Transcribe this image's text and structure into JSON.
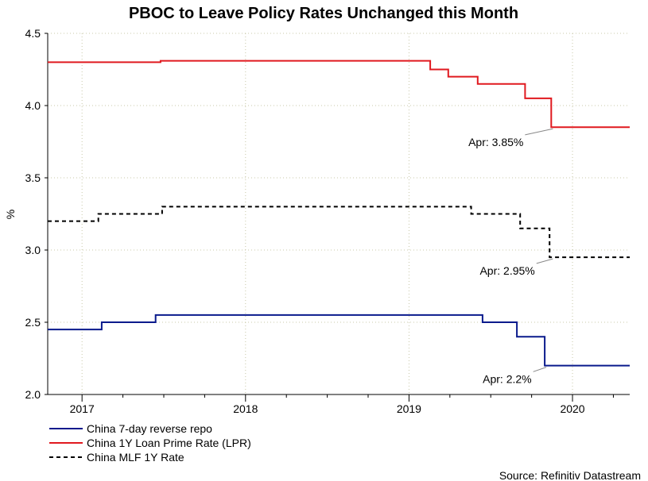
{
  "chart_data": {
    "type": "line",
    "title": "PBOC to Leave Policy Rates Unchanged this Month",
    "ylabel": "%",
    "xlabel": "",
    "ylim": [
      2.0,
      4.5
    ],
    "xlim": [
      2016.79,
      2020.35
    ],
    "yticks": [
      "2.0",
      "2.5",
      "3.0",
      "3.5",
      "4.0",
      "4.5"
    ],
    "xticks": [
      {
        "label": "2017",
        "pos": 2017.0
      },
      {
        "label": "2018",
        "pos": 2018.0
      },
      {
        "label": "2019",
        "pos": 2019.0
      },
      {
        "label": "2020",
        "pos": 2020.0
      }
    ],
    "grid": true,
    "series": [
      {
        "name": "China 7-day reverse repo",
        "color": "#0a1a8c",
        "dash": "solid",
        "x": [
          2016.79,
          2017.12,
          2017.12,
          2017.45,
          2017.45,
          2019.45,
          2019.45,
          2019.66,
          2019.66,
          2019.83,
          2019.83,
          2020.35
        ],
        "y": [
          2.45,
          2.45,
          2.5,
          2.5,
          2.55,
          2.55,
          2.5,
          2.5,
          2.4,
          2.4,
          2.2,
          2.2
        ]
      },
      {
        "name": "China 1Y Loan Prime Rate (LPR)",
        "color": "#e0191f",
        "dash": "solid",
        "x": [
          2016.79,
          2017.48,
          2017.48,
          2019.13,
          2019.13,
          2019.24,
          2019.24,
          2019.42,
          2019.42,
          2019.71,
          2019.71,
          2019.87,
          2019.87,
          2020.35
        ],
        "y": [
          4.3,
          4.3,
          4.31,
          4.31,
          4.25,
          4.25,
          4.2,
          4.2,
          4.15,
          4.15,
          4.05,
          4.05,
          3.85,
          3.85
        ]
      },
      {
        "name": "China MLF 1Y Rate",
        "color": "#000000",
        "dash": "dashed",
        "x": [
          2016.79,
          2017.1,
          2017.1,
          2017.49,
          2017.49,
          2019.38,
          2019.38,
          2019.68,
          2019.68,
          2019.86,
          2019.86,
          2020.35
        ],
        "y": [
          3.2,
          3.2,
          3.25,
          3.25,
          3.3,
          3.3,
          3.25,
          3.25,
          3.15,
          3.15,
          2.95,
          2.95
        ]
      }
    ],
    "annotations": [
      {
        "text": "Apr: 3.85%",
        "x": 2019.88,
        "y": 3.85,
        "tx": 2019.7,
        "ty": 3.77
      },
      {
        "text": "Apr: 2.95%",
        "x": 2019.88,
        "y": 2.95,
        "tx": 2019.77,
        "ty": 2.88
      },
      {
        "text": "Apr: 2.2%",
        "x": 2019.84,
        "y": 2.2,
        "tx": 2019.75,
        "ty": 2.13
      }
    ],
    "legend_position": "bottom-left",
    "source": "Source: Refinitiv Datastream"
  }
}
